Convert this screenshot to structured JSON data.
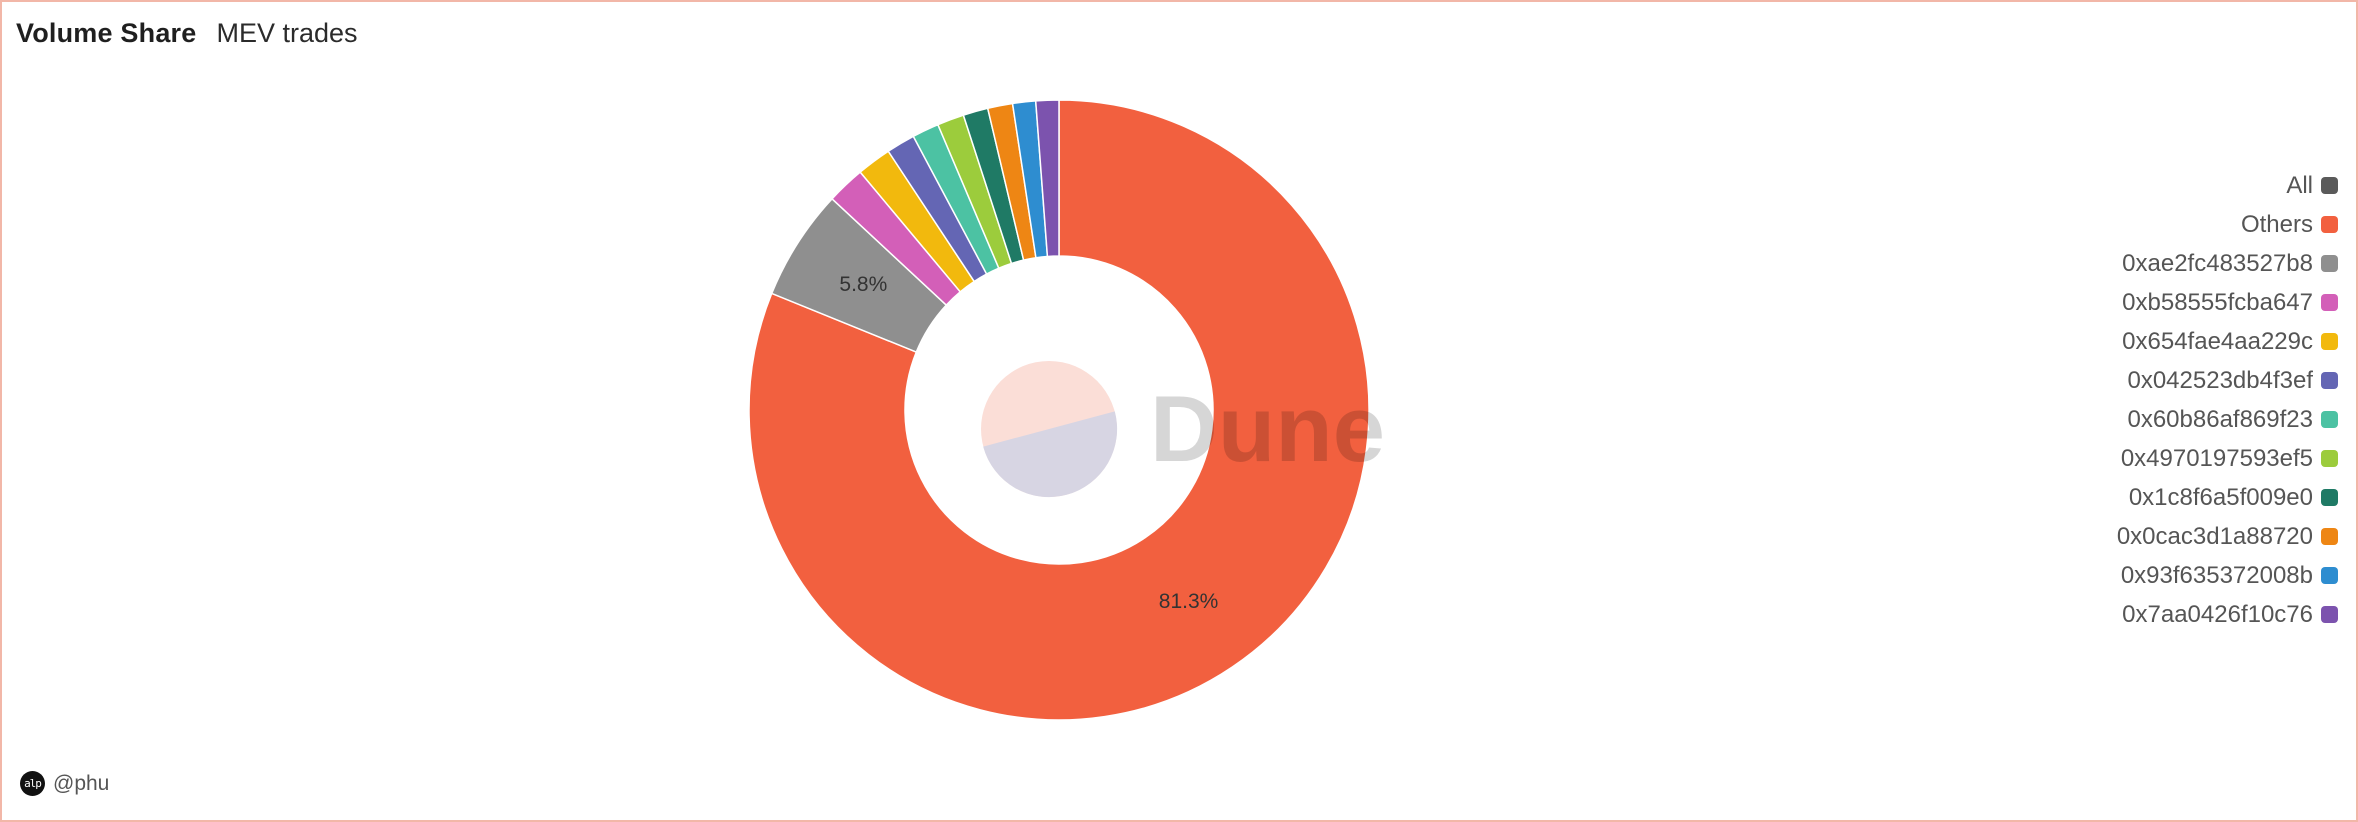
{
  "header": {
    "title": "Volume Share",
    "subtitle": "MEV trades"
  },
  "watermark": {
    "text": "Dune"
  },
  "footer": {
    "author": "@phu",
    "avatar_text": "alp"
  },
  "colors": {
    "border": "#f2b7a8",
    "slice_separator": "#ffffff"
  },
  "legend": [
    {
      "label": "All",
      "color": "#5a5a5a"
    },
    {
      "label": "Others",
      "color": "#f2603f"
    },
    {
      "label": "0xae2fc483527b8",
      "color": "#8f8f8f"
    },
    {
      "label": "0xb58555fcba647",
      "color": "#d35fb8"
    },
    {
      "label": "0x654fae4aa229c",
      "color": "#f2b90d"
    },
    {
      "label": "0x042523db4f3ef",
      "color": "#6466b4"
    },
    {
      "label": "0x60b86af869f23",
      "color": "#4cc2a3"
    },
    {
      "label": "0x4970197593ef5",
      "color": "#9ccc3c"
    },
    {
      "label": "0x1c8f6a5f009e0",
      "color": "#1f7a65"
    },
    {
      "label": "0x0cac3d1a88720",
      "color": "#ee8614"
    },
    {
      "label": "0x93f635372008b",
      "color": "#2e8dd0"
    },
    {
      "label": "0x7aa0426f10c76",
      "color": "#7c53ae"
    }
  ],
  "chart_data": {
    "type": "pie",
    "donut": true,
    "title": "Volume Share",
    "subtitle": "MEV trades",
    "slices": [
      {
        "label": "Others",
        "value": 81.3,
        "color": "#f2603f",
        "show_label": "81.3%"
      },
      {
        "label": "0xae2fc483527b8",
        "value": 5.8,
        "color": "#8f8f8f",
        "show_label": "5.8%"
      },
      {
        "label": "0xb58555fcba647",
        "value": 2.0,
        "color": "#d35fb8"
      },
      {
        "label": "0x654fae4aa229c",
        "value": 1.8,
        "color": "#f2b90d"
      },
      {
        "label": "0x042523db4f3ef",
        "value": 1.5,
        "color": "#6466b4"
      },
      {
        "label": "0x60b86af869f23",
        "value": 1.4,
        "color": "#4cc2a3"
      },
      {
        "label": "0x4970197593ef5",
        "value": 1.4,
        "color": "#9ccc3c"
      },
      {
        "label": "0x1c8f6a5f009e0",
        "value": 1.3,
        "color": "#1f7a65"
      },
      {
        "label": "0x0cac3d1a88720",
        "value": 1.3,
        "color": "#ee8614"
      },
      {
        "label": "0x93f635372008b",
        "value": 1.2,
        "color": "#2e8dd0"
      },
      {
        "label": "0x7aa0426f10c76",
        "value": 1.2,
        "color": "#7c53ae"
      }
    ],
    "legend_position": "right"
  }
}
